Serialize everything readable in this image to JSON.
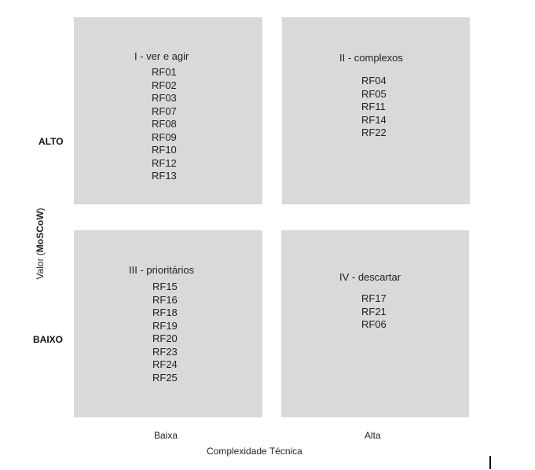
{
  "axes": {
    "y_label_prefix": "Valor (",
    "y_label_bold": "MoSCoW",
    "y_label_suffix": ")",
    "y_high": "ALTO",
    "y_low": "BAIXO",
    "x_label": "Complexidade Técnica",
    "x_low": "Baixa",
    "x_high": "Alta"
  },
  "quadrants": [
    {
      "title": "I - ver e agir",
      "items": [
        "RF01",
        "RF02",
        "RF03",
        "RF07",
        "RF08",
        "RF09",
        "RF10",
        "RF12",
        "RF13"
      ]
    },
    {
      "title": "II - complexos",
      "items": [
        "RF04",
        "RF05",
        "RF11",
        "RF14",
        "RF22"
      ]
    },
    {
      "title": "III - prioritários",
      "items": [
        "RF15",
        "RF16",
        "RF18",
        "RF19",
        "RF20",
        "RF23",
        "RF24",
        "RF25"
      ]
    },
    {
      "title": "IV - descartar",
      "items": [
        "RF17",
        "RF21",
        "RF06"
      ]
    }
  ]
}
